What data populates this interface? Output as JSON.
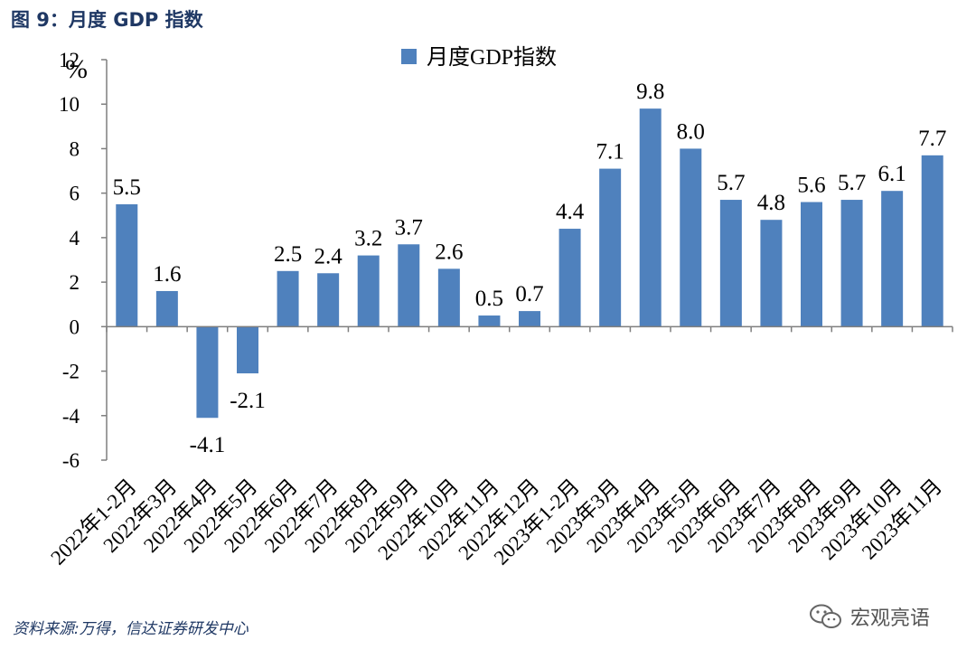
{
  "figure_title": "图 9：月度 GDP 指数",
  "source": "资料来源:万得，信达证券研发中心",
  "watermark": "宏观亮语",
  "colors": {
    "bar": "#4f81bd",
    "axis": "#7f7f7f",
    "title": "#1f3864",
    "text": "#000000"
  },
  "chart_data": {
    "type": "bar",
    "title": "",
    "ylabel": "%",
    "xlabel": "",
    "ylim": [
      -6,
      12
    ],
    "yticks": [
      -6,
      -4,
      -2,
      0,
      2,
      4,
      6,
      8,
      10,
      12
    ],
    "grid": false,
    "legend_position": "top-center",
    "categories": [
      "2022年1-2月",
      "2022年3月",
      "2022年4月",
      "2022年5月",
      "2022年6月",
      "2022年7月",
      "2022年8月",
      "2022年9月",
      "2022年10月",
      "2022年11月",
      "2022年12月",
      "2023年1-2月",
      "2023年3月",
      "2023年4月",
      "2023年5月",
      "2023年6月",
      "2023年7月",
      "2023年8月",
      "2023年9月",
      "2023年10月",
      "2023年11月"
    ],
    "series": [
      {
        "name": "月度GDP指数",
        "values": [
          5.5,
          1.6,
          -4.1,
          -2.1,
          2.5,
          2.4,
          3.2,
          3.7,
          2.6,
          0.5,
          0.7,
          4.4,
          7.1,
          9.8,
          8.0,
          5.7,
          4.8,
          5.6,
          5.7,
          6.1,
          7.7
        ],
        "labels": [
          "5.5",
          "1.6",
          "-4.1",
          "-2.1",
          "2.5",
          "2.4",
          "3.2",
          "3.7",
          "2.6",
          "0.5",
          "0.7",
          "4.4",
          "7.1",
          "9.8",
          "8.0",
          "5.7",
          "4.8",
          "5.6",
          "5.7",
          "6.1",
          "7.7"
        ]
      }
    ]
  }
}
